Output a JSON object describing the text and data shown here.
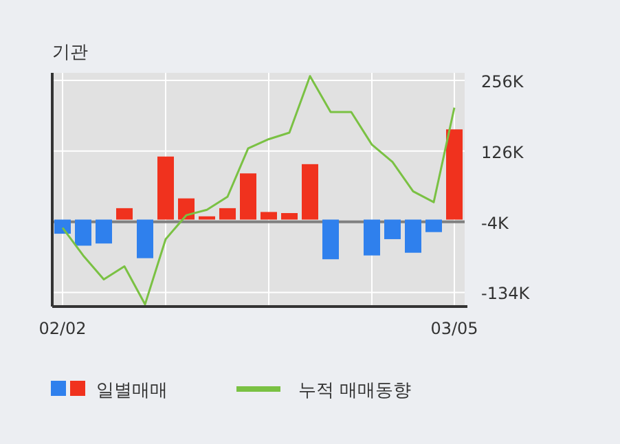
{
  "chart_data": {
    "type": "bar",
    "title": "기관",
    "categories": [
      "02/02",
      null,
      null,
      null,
      null,
      null,
      null,
      null,
      null,
      null,
      null,
      null,
      null,
      null,
      null,
      null,
      null,
      null,
      null,
      "03/05"
    ],
    "series": [
      {
        "name": "일별매매",
        "values": [
          -26000,
          -48000,
          -44000,
          21000,
          -71000,
          116000,
          39000,
          6000,
          21000,
          85000,
          14000,
          12000,
          102000,
          -73000,
          0,
          -66000,
          -36000,
          -61000,
          -23000,
          166000
        ],
        "colors": [
          "#2f80ed",
          "#2f80ed",
          "#2f80ed",
          "#f0321e",
          "#2f80ed",
          "#f0321e",
          "#f0321e",
          "#f0321e",
          "#f0321e",
          "#f0321e",
          "#f0321e",
          "#f0321e",
          "#f0321e",
          "#2f80ed",
          "#f0321e",
          "#2f80ed",
          "#2f80ed",
          "#2f80ed",
          "#2f80ed",
          "#f0321e"
        ]
      },
      {
        "name": "누적 매매동향",
        "type": "line",
        "color": "#7ac143",
        "values": [
          -15000,
          -66000,
          -110000,
          -86000,
          -156000,
          -36000,
          8000,
          18000,
          42000,
          131000,
          148000,
          160000,
          264000,
          198000,
          198000,
          138000,
          106000,
          52000,
          32000,
          206000
        ]
      }
    ],
    "ylim": [
      -160000,
      270000
    ],
    "yticks": [
      {
        "value": 256000,
        "label": "256K"
      },
      {
        "value": 126000,
        "label": "126K"
      },
      {
        "value": -4000,
        "label": "-4K"
      },
      {
        "value": -134000,
        "label": "-134K"
      }
    ],
    "ref_lines": [
      {
        "axis": "y",
        "value": -4000,
        "color": "#808080"
      }
    ],
    "grid": true,
    "legend": "bottom"
  }
}
